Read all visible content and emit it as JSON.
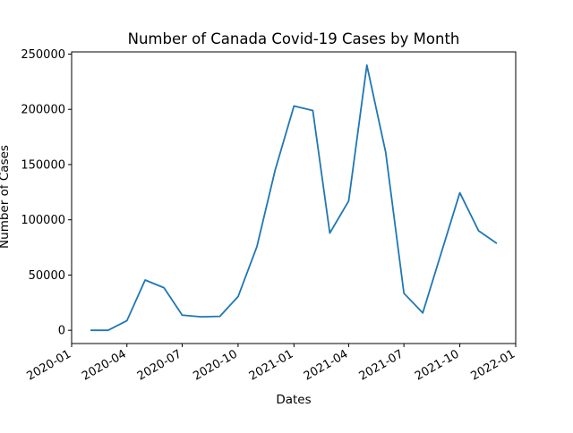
{
  "chart_data": {
    "type": "line",
    "title": "Number of Canada Covid-19 Cases by Month",
    "xlabel": "Dates",
    "ylabel": "Number of Cases",
    "x_ticks": [
      "2020-01",
      "2020-04",
      "2020-07",
      "2020-10",
      "2021-01",
      "2021-04",
      "2021-07",
      "2021-10",
      "2022-01"
    ],
    "y_ticks": [
      0,
      50000,
      100000,
      150000,
      200000,
      250000
    ],
    "xlim": [
      "2020-01-01",
      "2022-01-01"
    ],
    "ylim": [
      -12000,
      252000
    ],
    "grid": false,
    "line_color": "#1f77b4",
    "series": [
      {
        "x": [
          "2020-02-01",
          "2020-03-01",
          "2020-04-01",
          "2020-05-01",
          "2020-06-01",
          "2020-07-01",
          "2020-08-01",
          "2020-09-01",
          "2020-10-01",
          "2020-11-01",
          "2020-12-01",
          "2021-01-01",
          "2021-02-01",
          "2021-03-01",
          "2021-04-01",
          "2021-05-01",
          "2021-06-01",
          "2021-07-01",
          "2021-08-01",
          "2021-09-01",
          "2021-10-01",
          "2021-11-01",
          "2021-12-01"
        ],
        "values": [
          0,
          0,
          8700,
          45500,
          38500,
          13700,
          12200,
          12600,
          30500,
          75700,
          145000,
          203000,
          199000,
          88000,
          117000,
          240000,
          161000,
          33500,
          15700,
          71000,
          124500,
          90000,
          78600
        ]
      }
    ]
  }
}
